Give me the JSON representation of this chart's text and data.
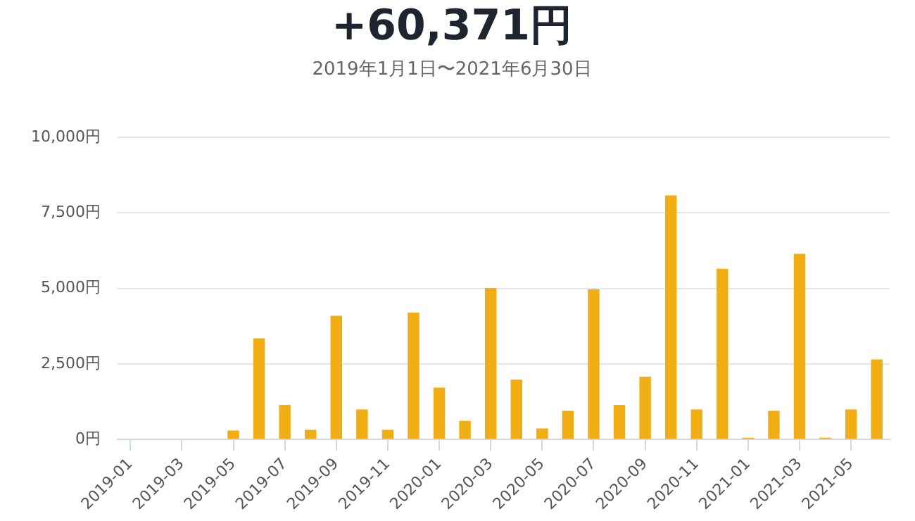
{
  "chart_data": {
    "type": "bar",
    "title": "+60,371円",
    "subtitle": "2019年1月1日〜2021年6月30日",
    "categories": [
      "2019-01",
      null,
      "2019-03",
      null,
      "2019-05",
      null,
      "2019-07",
      null,
      "2019-09",
      null,
      "2019-11",
      null,
      "2020-01",
      null,
      "2020-03",
      null,
      "2020-05",
      null,
      "2020-07",
      null,
      "2020-09",
      null,
      "2020-11",
      null,
      "2021-01",
      null,
      "2021-03",
      null,
      "2021-05",
      null
    ],
    "values": [
      0,
      0,
      0,
      0,
      300,
      3350,
      1150,
      320,
      4100,
      1000,
      320,
      4200,
      1720,
      620,
      5020,
      1980,
      370,
      950,
      4970,
      1150,
      2080,
      8080,
      1000,
      5650,
      60,
      950,
      6150,
      60,
      1000,
      2650
    ],
    "color": "#f0ad14",
    "ylim": [
      0,
      10000
    ],
    "yticks": [
      {
        "value": 0,
        "label": "0円"
      },
      {
        "value": 2500,
        "label": "2,500円"
      },
      {
        "value": 5000,
        "label": "5,000円"
      },
      {
        "value": 7500,
        "label": "7,500円"
      },
      {
        "value": 10000,
        "label": "10,000円"
      }
    ],
    "grid": "y"
  }
}
